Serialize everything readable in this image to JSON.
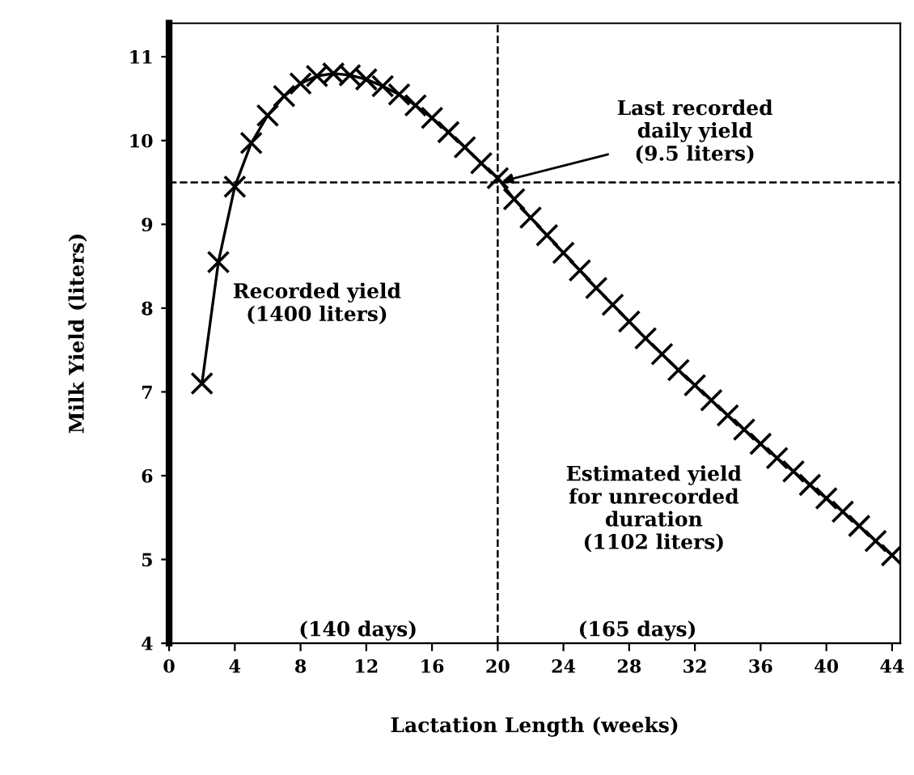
{
  "chart_data": {
    "type": "line",
    "xlabel": "Lactation Length (weeks)",
    "ylabel": "Milk Yield (liters)",
    "x": [
      2,
      3,
      4,
      5,
      6,
      7,
      8,
      9,
      10,
      11,
      12,
      13,
      14,
      15,
      16,
      17,
      18,
      19,
      20,
      21,
      22,
      23,
      24,
      25,
      26,
      27,
      28,
      29,
      30,
      31,
      32,
      33,
      34,
      35,
      36,
      37,
      38,
      39,
      40,
      41,
      42,
      43,
      44
    ],
    "series": [
      {
        "color": "#000000",
        "values": [
          7.1,
          8.55,
          9.45,
          9.97,
          10.3,
          10.53,
          10.68,
          10.77,
          10.8,
          10.78,
          10.73,
          10.65,
          10.55,
          10.42,
          10.27,
          10.1,
          9.92,
          9.73,
          9.55,
          9.3,
          9.08,
          8.87,
          8.66,
          8.45,
          8.24,
          8.04,
          7.84,
          7.64,
          7.45,
          7.26,
          7.08,
          6.9,
          6.72,
          6.55,
          6.38,
          6.21,
          6.05,
          5.89,
          5.73,
          5.57,
          5.4,
          5.22,
          5.05
        ]
      }
    ],
    "marker": "cross",
    "line_style": "solid",
    "xlim": [
      0,
      44.5
    ],
    "xticks": [
      0,
      4,
      8,
      12,
      16,
      20,
      24,
      28,
      32,
      36,
      40,
      44
    ],
    "ylim": [
      4,
      11.4
    ],
    "yticks": [
      4,
      5,
      6,
      7,
      8,
      9,
      10,
      11
    ],
    "grid": false,
    "legend": false,
    "ref_lines": [
      {
        "axis": "y",
        "value": 9.5,
        "line_style": "dashed",
        "color": "#000000"
      },
      {
        "axis": "x",
        "value": 20,
        "line_style": "dashed",
        "color": "#000000"
      }
    ],
    "annotations": [
      {
        "text": "Last recorded\ndaily yield\n(9.5 liters)",
        "x": 20,
        "y": 9.5
      },
      "Recorded yield\n(1400 liters)",
      "Estimated yield\nfor unrecorded\nduration\n(1102 liters)",
      "(140 days)",
      "(165 days)"
    ]
  }
}
